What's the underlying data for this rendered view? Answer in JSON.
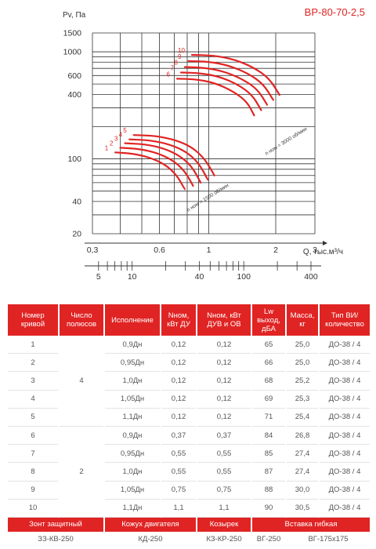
{
  "chart_data": {
    "type": "line",
    "title": "ВР-80-70-2,5",
    "xlabel": "Q, тыс.м³/ч",
    "ylabel": "Pv, Па",
    "xscale": "log",
    "yscale": "log",
    "xlim": [
      0.3,
      3
    ],
    "ylim": [
      20,
      1500
    ],
    "x_ticks": [
      "0,3",
      "0.6",
      "1",
      "2",
      "3"
    ],
    "y_ticks": [
      "1500",
      "1000",
      "600",
      "400",
      "100",
      "40",
      "20"
    ],
    "secondary_axis_ticks": [
      "5",
      "10",
      "40",
      "100",
      "400"
    ],
    "grid": true,
    "line_color": "#e02424",
    "curve_labels": [
      "1",
      "2",
      "3",
      "4",
      "5",
      "6",
      "7",
      "8",
      "9",
      "10"
    ],
    "speed_labels": [
      "n ном = 1500 об/мин",
      "n ном = 3000 об/мин"
    ],
    "series": [
      {
        "name": "1",
        "x": [
          0.38,
          0.46,
          0.55,
          0.64,
          0.72,
          0.78
        ],
        "y": [
          115,
          112,
          102,
          88,
          70,
          52
        ]
      },
      {
        "name": "2",
        "x": [
          0.4,
          0.49,
          0.59,
          0.69,
          0.78,
          0.85
        ],
        "y": [
          127,
          124,
          113,
          97,
          77,
          56
        ]
      },
      {
        "name": "3",
        "x": [
          0.42,
          0.52,
          0.63,
          0.74,
          0.84,
          0.92
        ],
        "y": [
          140,
          137,
          125,
          107,
          85,
          60
        ]
      },
      {
        "name": "4",
        "x": [
          0.44,
          0.55,
          0.67,
          0.79,
          0.9,
          0.99
        ],
        "y": [
          152,
          149,
          136,
          117,
          92,
          64
        ]
      },
      {
        "name": "5",
        "x": [
          0.46,
          0.58,
          0.71,
          0.84,
          0.96,
          1.06
        ],
        "y": [
          167,
          164,
          150,
          129,
          100,
          70
        ]
      },
      {
        "name": "6",
        "x": [
          0.72,
          0.88,
          1.07,
          1.28,
          1.48,
          1.6
        ],
        "y": [
          560,
          555,
          510,
          430,
          345,
          255
        ]
      },
      {
        "name": "7",
        "x": [
          0.75,
          0.92,
          1.12,
          1.35,
          1.57,
          1.72
        ],
        "y": [
          640,
          633,
          585,
          495,
          395,
          285
        ]
      },
      {
        "name": "8",
        "x": [
          0.78,
          0.96,
          1.17,
          1.42,
          1.66,
          1.83
        ],
        "y": [
          720,
          712,
          655,
          555,
          445,
          320
        ]
      },
      {
        "name": "9",
        "x": [
          0.81,
          1.0,
          1.23,
          1.5,
          1.76,
          1.95
        ],
        "y": [
          820,
          810,
          745,
          630,
          500,
          355
        ]
      },
      {
        "name": "10",
        "x": [
          0.84,
          1.05,
          1.3,
          1.59,
          1.87,
          2.08
        ],
        "y": [
          935,
          925,
          850,
          715,
          565,
          395
        ]
      }
    ]
  },
  "table": {
    "headers": [
      "Номер кривой",
      "Число полюсов",
      "Исполнение",
      "Nном, кВт ДУ",
      "Nном, кВт ДУВ и ОВ",
      "Lw выход, дБА",
      "Масса, кг",
      "Тип ВИ/ количество"
    ],
    "poles_group_1": "4",
    "poles_group_2": "2",
    "rows": [
      {
        "curve": "1",
        "variant": "0,9Дн",
        "n_du": "0,12",
        "n_duv": "0,12",
        "lw": "65",
        "mass": "25,0",
        "vi": "ДО-38 / 4"
      },
      {
        "curve": "2",
        "variant": "0,95Дн",
        "n_du": "0,12",
        "n_duv": "0,12",
        "lw": "66",
        "mass": "25,0",
        "vi": "ДО-38 / 4"
      },
      {
        "curve": "3",
        "variant": "1,0Дн",
        "n_du": "0,12",
        "n_duv": "0,12",
        "lw": "68",
        "mass": "25,2",
        "vi": "ДО-38 / 4"
      },
      {
        "curve": "4",
        "variant": "1,05Дн",
        "n_du": "0,12",
        "n_duv": "0,12",
        "lw": "69",
        "mass": "25,3",
        "vi": "ДО-38 / 4"
      },
      {
        "curve": "5",
        "variant": "1,1Дн",
        "n_du": "0,12",
        "n_duv": "0,12",
        "lw": "71",
        "mass": "25,4",
        "vi": "ДО-38 / 4"
      },
      {
        "curve": "6",
        "variant": "0,9Дн",
        "n_du": "0,37",
        "n_duv": "0,37",
        "lw": "84",
        "mass": "26,8",
        "vi": "ДО-38 / 4"
      },
      {
        "curve": "7",
        "variant": "0,95Дн",
        "n_du": "0,55",
        "n_duv": "0,55",
        "lw": "85",
        "mass": "27,4",
        "vi": "ДО-38 / 4"
      },
      {
        "curve": "8",
        "variant": "1,0Дн",
        "n_du": "0,55",
        "n_duv": "0,55",
        "lw": "87",
        "mass": "27,4",
        "vi": "ДО-38 / 4"
      },
      {
        "curve": "9",
        "variant": "1,05Дн",
        "n_du": "0,75",
        "n_duv": "0,75",
        "lw": "88",
        "mass": "30,0",
        "vi": "ДО-38 / 4"
      },
      {
        "curve": "10",
        "variant": "1,1Дн",
        "n_du": "1,1",
        "n_duv": "1,1",
        "lw": "90",
        "mass": "30,5",
        "vi": "ДО-38 / 4"
      }
    ],
    "accessory_headers": [
      "Зонт защитный",
      "Кожух двигателя",
      "Козырек",
      "Вставка гибкая"
    ],
    "accessory_values": [
      "ЗЗ-КВ-250",
      "КД-250",
      "КЗ-КР-250",
      "ВГ-250",
      "ВГ-175х175"
    ]
  }
}
